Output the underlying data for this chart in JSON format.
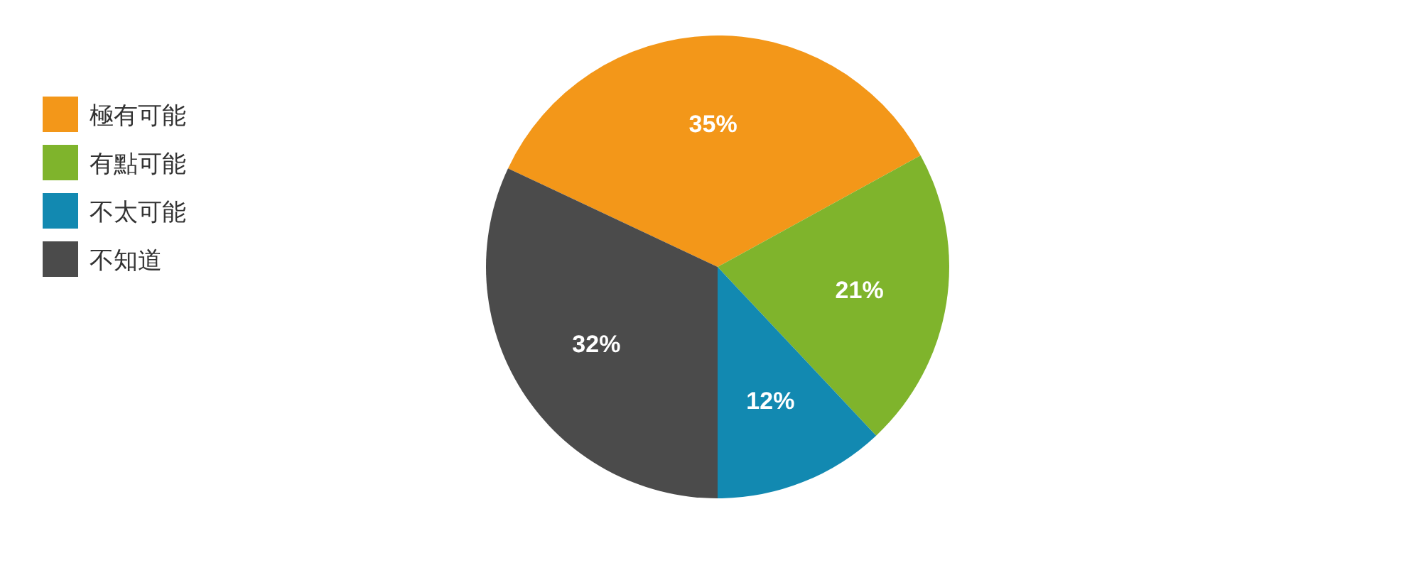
{
  "chart_data": {
    "type": "pie",
    "categories": [
      "極有可能",
      "有點可能",
      "不太可能",
      "不知道"
    ],
    "values": [
      35,
      21,
      12,
      32
    ],
    "value_labels": [
      "35%",
      "21%",
      "12%",
      "32%"
    ],
    "colors": [
      "#f39719",
      "#7fb42c",
      "#1289b1",
      "#4b4b4b"
    ],
    "legend": "left"
  }
}
